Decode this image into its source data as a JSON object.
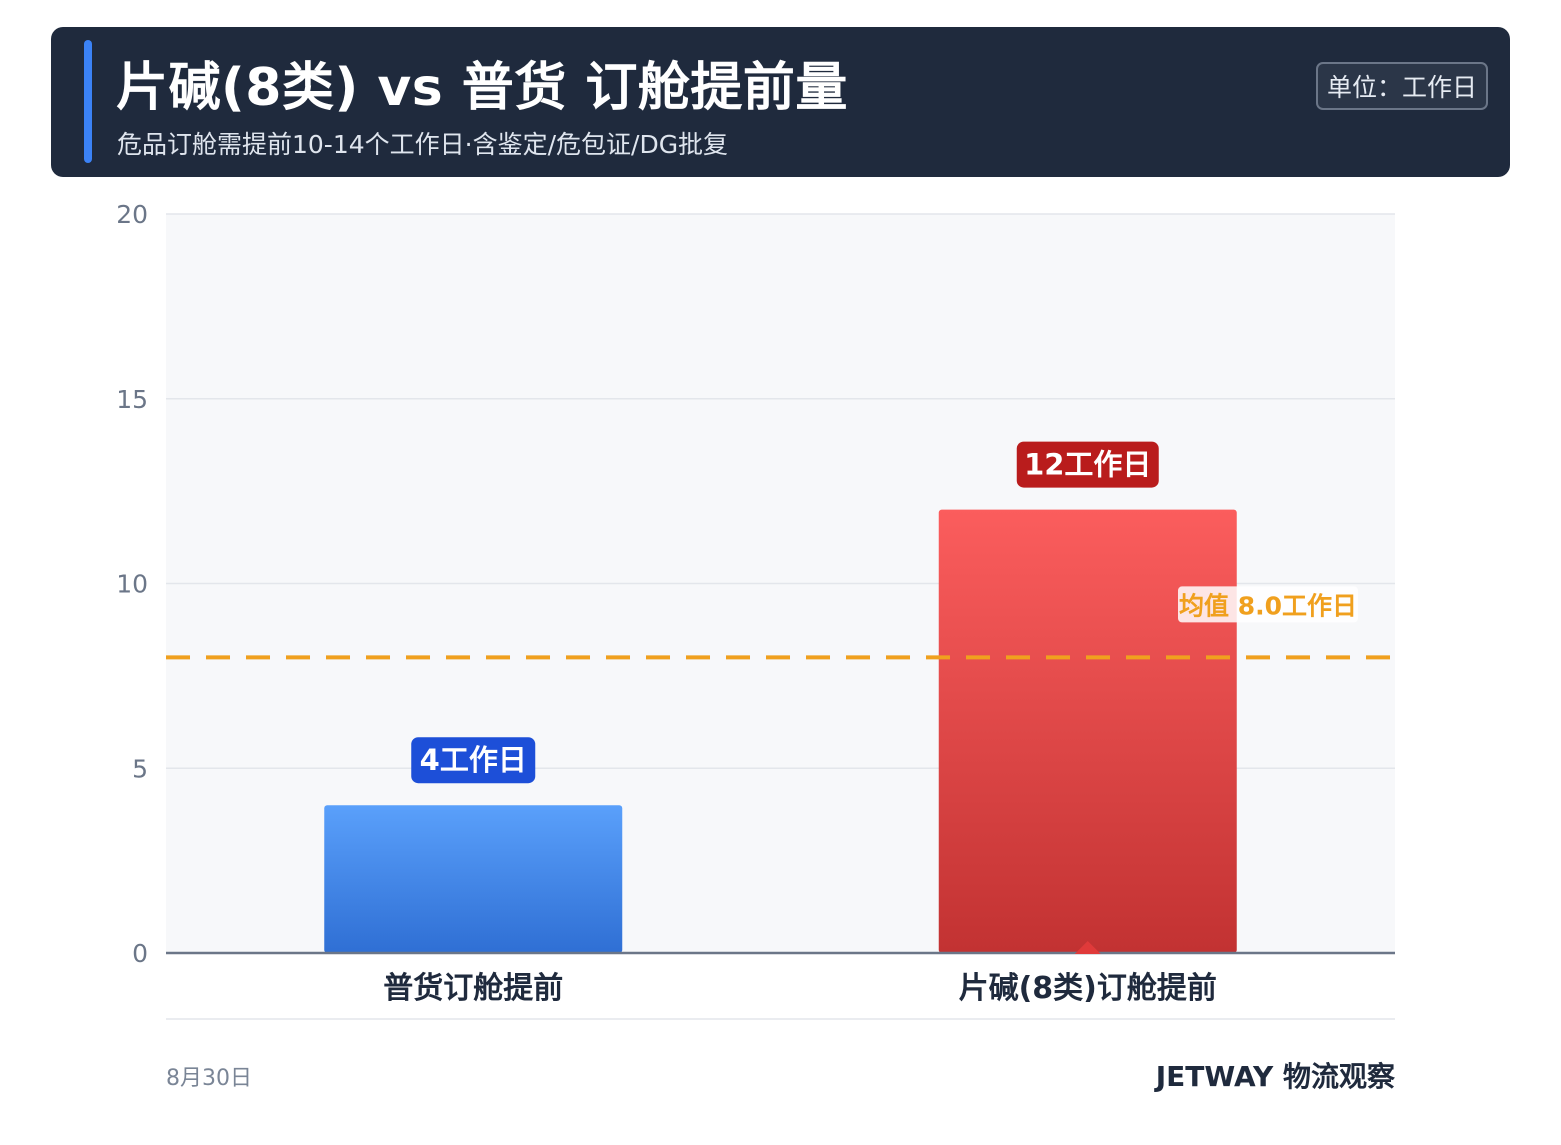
{
  "header": {
    "title": "片碱(8类) vs 普货 订舱提前量",
    "subtitle": "危品订舱需提前10-14个工作日·含鉴定/危包证/DG批复",
    "unit_label": "单位：工作日"
  },
  "chart_data": {
    "type": "bar",
    "categories": [
      "普货订舱提前",
      "片碱(8类)订舱提前"
    ],
    "values": [
      4,
      12
    ],
    "data_labels": [
      "4工作日",
      "12工作日"
    ],
    "bar_colors": [
      {
        "top": "#5aa0fb",
        "bottom": "#2f6fd4",
        "label_bg": "#1d4fd8"
      },
      {
        "top": "#fb5d5d",
        "bottom": "#c23232",
        "label_bg": "#b91c1c"
      }
    ],
    "ylim": [
      0,
      20
    ],
    "yticks": [
      0,
      5,
      10,
      15,
      20
    ],
    "grid": true,
    "reference_line": {
      "value": 8.0,
      "label": "均值 8.0工作日",
      "color": "#f0a01e",
      "style": "dashed"
    },
    "marker": {
      "category_index": 1,
      "shape": "triangle",
      "color": "#e03a3a"
    },
    "plot_background": "#f7f8fa",
    "grid_color": "#e3e6eb",
    "axis_color": "#6b7688"
  },
  "footer": {
    "date": "8月30日",
    "brand": "JETWAY 物流观察"
  }
}
